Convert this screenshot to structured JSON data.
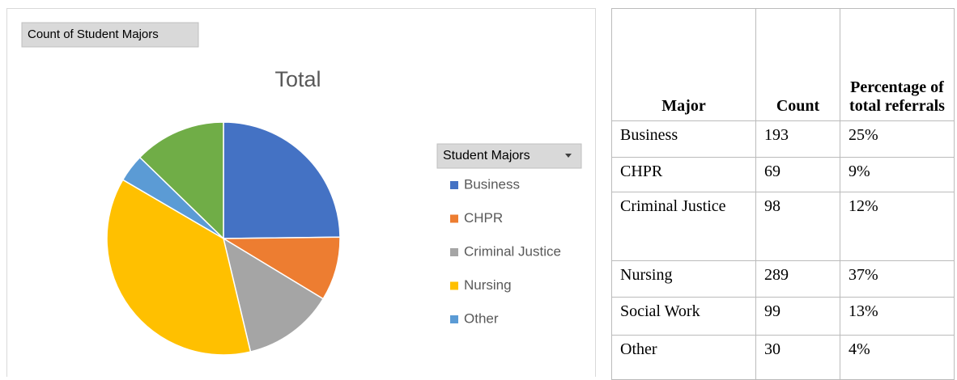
{
  "chart_data": {
    "type": "pie",
    "title": "Total",
    "button": "Count of Student Majors",
    "legend_title": "Student Majors",
    "categories": [
      "Business",
      "CHPR",
      "Criminal Justice",
      "Nursing",
      "Other",
      null
    ],
    "values": [
      193,
      69,
      98,
      289,
      30,
      99
    ],
    "colors": [
      "#4472c4",
      "#ed7d31",
      "#a5a5a5",
      "#ffc000",
      "#5b9bd5",
      "#70ad47"
    ],
    "legend": "right"
  },
  "table": {
    "header": [
      "Major",
      "Count",
      "Percentage of total referrals"
    ],
    "rows": [
      [
        "Business",
        "193",
        "25%"
      ],
      [
        "CHPR",
        "69",
        "9%"
      ],
      [
        "Criminal Justice",
        "98",
        "12%"
      ],
      [
        "Nursing",
        "289",
        "37%"
      ],
      [
        "Social Work",
        "99",
        "13%"
      ],
      [
        "Other",
        "30",
        "4%"
      ]
    ]
  }
}
